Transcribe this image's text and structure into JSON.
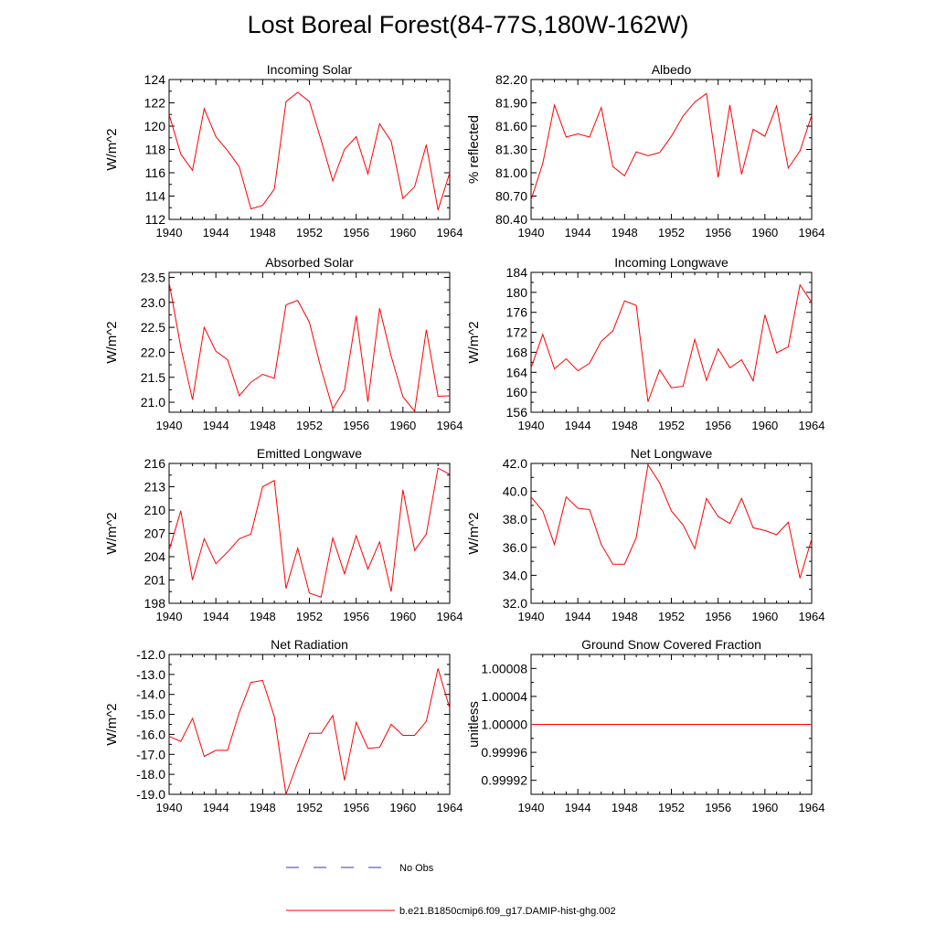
{
  "figure": {
    "title": "Lost Boreal Forest(84-77S,180W-162W)",
    "legend": [
      {
        "label": "No Obs",
        "color": "#3333cc",
        "style": "dashed"
      },
      {
        "label": "b.e21.B1850cmip6.f09_g17.DAMIP-hist-ghg.002",
        "color": "#ff0000",
        "style": "solid"
      }
    ]
  },
  "chart_data": [
    {
      "type": "line",
      "title": "Incoming Solar",
      "ylabel": "W/m^2",
      "xlim": [
        1940,
        1964
      ],
      "ylim": [
        112,
        124
      ],
      "xticks": [
        "1940",
        "1944",
        "1948",
        "1952",
        "1956",
        "1960",
        "1964"
      ],
      "yticks": [
        "112",
        "114",
        "116",
        "118",
        "120",
        "122",
        "124"
      ],
      "series": [
        {
          "color": "#ff0000",
          "x": [
            1940,
            1941,
            1942,
            1943,
            1944,
            1945,
            1946,
            1947,
            1948,
            1949,
            1950,
            1951,
            1952,
            1953,
            1954,
            1955,
            1956,
            1957,
            1958,
            1959,
            1960,
            1961,
            1962,
            1963,
            1964
          ],
          "values": [
            121.0,
            117.6,
            116.2,
            121.5,
            119.1,
            117.9,
            116.5,
            112.9,
            113.2,
            114.6,
            122.1,
            122.9,
            122.1,
            118.8,
            115.3,
            118.0,
            119.1,
            115.9,
            120.2,
            118.7,
            113.8,
            114.8,
            118.4,
            112.8,
            116.0
          ]
        }
      ]
    },
    {
      "type": "line",
      "title": "Albedo",
      "ylabel": "% reflected",
      "xlim": [
        1940,
        1964
      ],
      "ylim": [
        80.4,
        82.2
      ],
      "xticks": [
        "1940",
        "1944",
        "1948",
        "1952",
        "1956",
        "1960",
        "1964"
      ],
      "yticks": [
        "80.40",
        "80.70",
        "81.00",
        "81.30",
        "81.60",
        "81.90",
        "82.20"
      ],
      "series": [
        {
          "color": "#ff0000",
          "x": [
            1940,
            1941,
            1942,
            1943,
            1944,
            1945,
            1946,
            1947,
            1948,
            1949,
            1950,
            1951,
            1952,
            1953,
            1954,
            1955,
            1956,
            1957,
            1958,
            1959,
            1960,
            1961,
            1962,
            1963,
            1964
          ],
          "values": [
            80.65,
            81.12,
            81.87,
            81.46,
            81.5,
            81.46,
            81.84,
            81.08,
            80.96,
            81.27,
            81.22,
            81.26,
            81.47,
            81.73,
            81.91,
            82.02,
            80.94,
            81.87,
            80.98,
            81.56,
            81.47,
            81.86,
            81.06,
            81.28,
            81.74
          ]
        }
      ]
    },
    {
      "type": "line",
      "title": "Absorbed Solar",
      "ylabel": "W/m^2",
      "xlim": [
        1940,
        1964
      ],
      "ylim": [
        20.8,
        23.6
      ],
      "xticks": [
        "1940",
        "1944",
        "1948",
        "1952",
        "1956",
        "1960",
        "1964"
      ],
      "yticks": [
        "21.0",
        "21.5",
        "22.0",
        "22.5",
        "23.0",
        "23.5"
      ],
      "series": [
        {
          "color": "#ff0000",
          "x": [
            1940,
            1941,
            1942,
            1943,
            1944,
            1945,
            1946,
            1947,
            1948,
            1949,
            1950,
            1951,
            1952,
            1953,
            1954,
            1955,
            1956,
            1957,
            1958,
            1959,
            1960,
            1961,
            1962,
            1963,
            1964
          ],
          "values": [
            23.4,
            22.1,
            21.05,
            22.5,
            22.02,
            21.85,
            21.13,
            21.4,
            21.56,
            21.48,
            22.95,
            23.04,
            22.6,
            21.67,
            20.87,
            21.25,
            22.73,
            21.01,
            22.88,
            21.92,
            21.11,
            20.82,
            22.45,
            21.12,
            21.13
          ]
        }
      ]
    },
    {
      "type": "line",
      "title": "Incoming Longwave",
      "ylabel": "W/m^2",
      "xlim": [
        1940,
        1964
      ],
      "ylim": [
        156,
        184
      ],
      "xticks": [
        "1940",
        "1944",
        "1948",
        "1952",
        "1956",
        "1960",
        "1964"
      ],
      "yticks": [
        "156",
        "160",
        "164",
        "168",
        "172",
        "176",
        "180",
        "184"
      ],
      "series": [
        {
          "color": "#ff0000",
          "x": [
            1940,
            1941,
            1942,
            1943,
            1944,
            1945,
            1946,
            1947,
            1948,
            1949,
            1950,
            1951,
            1952,
            1953,
            1954,
            1955,
            1956,
            1957,
            1958,
            1959,
            1960,
            1961,
            1962,
            1963,
            1964
          ],
          "values": [
            164.9,
            171.6,
            164.7,
            166.7,
            164.3,
            165.8,
            170.2,
            172.3,
            178.3,
            177.4,
            158.1,
            164.5,
            160.9,
            161.2,
            170.6,
            162.4,
            168.7,
            164.9,
            166.5,
            162.3,
            175.5,
            167.9,
            169.1,
            181.5,
            178.0
          ]
        }
      ]
    },
    {
      "type": "line",
      "title": "Emitted Longwave",
      "ylabel": "W/m^2",
      "xlim": [
        1940,
        1964
      ],
      "ylim": [
        198,
        216
      ],
      "xticks": [
        "1940",
        "1944",
        "1948",
        "1952",
        "1956",
        "1960",
        "1964"
      ],
      "yticks": [
        "198",
        "201",
        "204",
        "207",
        "210",
        "213",
        "216"
      ],
      "series": [
        {
          "color": "#ff0000",
          "x": [
            1940,
            1941,
            1942,
            1943,
            1944,
            1945,
            1946,
            1947,
            1948,
            1949,
            1950,
            1951,
            1952,
            1953,
            1954,
            1955,
            1956,
            1957,
            1958,
            1959,
            1960,
            1961,
            1962,
            1963,
            1964
          ],
          "values": [
            204.8,
            209.9,
            201.0,
            206.3,
            203.1,
            204.6,
            206.3,
            206.9,
            213.0,
            213.8,
            199.9,
            205.1,
            199.3,
            198.8,
            206.4,
            201.8,
            206.7,
            202.4,
            205.9,
            199.5,
            212.6,
            204.8,
            206.9,
            215.4,
            214.6
          ]
        }
      ]
    },
    {
      "type": "line",
      "title": "Net Longwave",
      "ylabel": "W/m^2",
      "xlim": [
        1940,
        1964
      ],
      "ylim": [
        32,
        42
      ],
      "xticks": [
        "1940",
        "1944",
        "1948",
        "1952",
        "1956",
        "1960",
        "1964"
      ],
      "yticks": [
        "32.0",
        "34.0",
        "36.0",
        "38.0",
        "40.0",
        "42.0"
      ],
      "series": [
        {
          "color": "#ff0000",
          "x": [
            1940,
            1941,
            1942,
            1943,
            1944,
            1945,
            1946,
            1947,
            1948,
            1949,
            1950,
            1951,
            1952,
            1953,
            1954,
            1955,
            1956,
            1957,
            1958,
            1959,
            1960,
            1961,
            1962,
            1963,
            1964
          ],
          "values": [
            39.6,
            38.6,
            36.2,
            39.6,
            38.8,
            38.7,
            36.2,
            34.8,
            34.8,
            36.7,
            41.9,
            40.6,
            38.6,
            37.6,
            35.9,
            39.5,
            38.2,
            37.7,
            39.5,
            37.4,
            37.2,
            36.9,
            37.8,
            33.8,
            36.6
          ]
        }
      ]
    },
    {
      "type": "line",
      "title": "Net Radiation",
      "ylabel": "W/m^2",
      "xlim": [
        1940,
        1964
      ],
      "ylim": [
        -19,
        -12
      ],
      "xticks": [
        "1940",
        "1944",
        "1948",
        "1952",
        "1956",
        "1960",
        "1964"
      ],
      "yticks": [
        "-19.0",
        "-18.0",
        "-17.0",
        "-16.0",
        "-15.0",
        "-14.0",
        "-13.0",
        "-12.0"
      ],
      "series": [
        {
          "color": "#ff0000",
          "x": [
            1940,
            1941,
            1942,
            1943,
            1944,
            1945,
            1946,
            1947,
            1948,
            1949,
            1950,
            1951,
            1952,
            1953,
            1954,
            1955,
            1956,
            1957,
            1958,
            1959,
            1960,
            1961,
            1962,
            1963,
            1964
          ],
          "values": [
            -16.1,
            -16.35,
            -15.2,
            -17.1,
            -16.8,
            -16.8,
            -14.9,
            -13.4,
            -13.3,
            -15.1,
            -19.0,
            -17.4,
            -15.95,
            -15.95,
            -15.05,
            -18.3,
            -15.4,
            -16.7,
            -16.65,
            -15.5,
            -16.05,
            -16.05,
            -15.35,
            -12.7,
            -14.7
          ]
        }
      ]
    },
    {
      "type": "line",
      "title": "Ground Snow Covered Fraction",
      "ylabel": "unitless",
      "xlim": [
        1940,
        1964
      ],
      "ylim": [
        0.9999,
        1.0001
      ],
      "xticks": [
        "1940",
        "1944",
        "1948",
        "1952",
        "1956",
        "1960",
        "1964"
      ],
      "yticks": [
        "0.99992",
        "0.99996",
        "1.00000",
        "1.00004",
        "1.00008"
      ],
      "series": [
        {
          "color": "#ff0000",
          "x": [
            1940,
            1964
          ],
          "values": [
            1.0,
            1.0
          ]
        }
      ]
    }
  ]
}
